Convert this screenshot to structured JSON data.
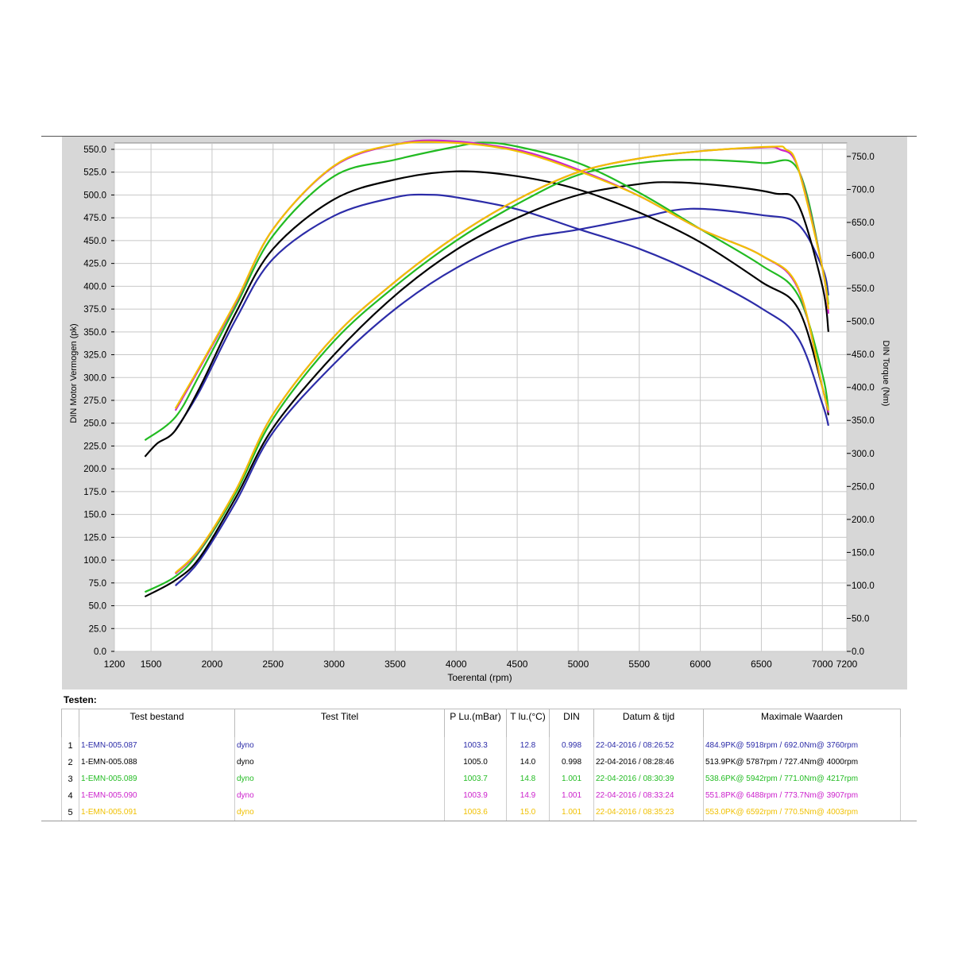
{
  "chart_data": {
    "type": "line",
    "xlabel": "Toerental (rpm)",
    "ylabel_left": "DIN Motor Vermogen (pk)",
    "ylabel_right": "DIN Torque (Nm)",
    "xlim": [
      1200,
      7200
    ],
    "ylim_left": [
      0,
      550
    ],
    "ylim_right": [
      0,
      780
    ],
    "x_ticks": [
      1200,
      1500,
      2000,
      2500,
      3000,
      3500,
      4000,
      4500,
      5000,
      5500,
      6000,
      6500,
      7000,
      7200
    ],
    "x_tick_labels": [
      "1200",
      "1500",
      "2000",
      "2500",
      "3000",
      "3500",
      "4000",
      "4500",
      "5000",
      "5500",
      "6000",
      "6500",
      "7000",
      "7200"
    ],
    "y_left_ticks": [
      "0.0",
      "25.0",
      "50.0",
      "75.0",
      "100.0",
      "125.0",
      "150.0",
      "175.0",
      "200.0",
      "225.0",
      "250.0",
      "275.0",
      "300.0",
      "325.0",
      "350.0",
      "375.0",
      "400.0",
      "425.0",
      "450.0",
      "475.0",
      "500.0",
      "525.0",
      "550.0"
    ],
    "y_right_ticks": [
      "0.0",
      "50.0",
      "100.0",
      "150.0",
      "200.0",
      "250.0",
      "300.0",
      "350.0",
      "400.0",
      "450.0",
      "500.0",
      "550.0",
      "600.0",
      "650.0",
      "700.0",
      "750.0"
    ],
    "grid": true,
    "series": [
      {
        "name": "1-EMN-005.087",
        "color": "#2c2ca8",
        "power": [
          [
            1700,
            72
          ],
          [
            1900,
            100
          ],
          [
            2200,
            165
          ],
          [
            2500,
            240
          ],
          [
            3000,
            315
          ],
          [
            3500,
            375
          ],
          [
            4000,
            420
          ],
          [
            4500,
            450
          ],
          [
            5000,
            462
          ],
          [
            5500,
            475
          ],
          [
            5918,
            484.9
          ],
          [
            6500,
            478
          ],
          [
            6800,
            468
          ],
          [
            7000,
            420
          ],
          [
            7050,
            390
          ]
        ],
        "torque": [
          [
            1700,
            335
          ],
          [
            1900,
            395
          ],
          [
            2200,
            505
          ],
          [
            2500,
            595
          ],
          [
            3000,
            660
          ],
          [
            3500,
            688
          ],
          [
            3760,
            692
          ],
          [
            4000,
            688
          ],
          [
            4500,
            670
          ],
          [
            5000,
            640
          ],
          [
            5500,
            610
          ],
          [
            6000,
            570
          ],
          [
            6500,
            520
          ],
          [
            6800,
            475
          ],
          [
            7000,
            375
          ],
          [
            7050,
            342
          ]
        ]
      },
      {
        "name": "1-EMN-005.088",
        "color": "#000000",
        "power": [
          [
            1450,
            60
          ],
          [
            1700,
            78
          ],
          [
            1900,
            103
          ],
          [
            2200,
            170
          ],
          [
            2500,
            245
          ],
          [
            3000,
            325
          ],
          [
            3500,
            390
          ],
          [
            4000,
            440
          ],
          [
            4500,
            475
          ],
          [
            5000,
            500
          ],
          [
            5500,
            512
          ],
          [
            5787,
            513.9
          ],
          [
            6200,
            510
          ],
          [
            6600,
            502
          ],
          [
            6800,
            490
          ],
          [
            7000,
            400
          ],
          [
            7050,
            350
          ]
        ],
        "torque": [
          [
            1450,
            295
          ],
          [
            1550,
            315
          ],
          [
            1700,
            335
          ],
          [
            1900,
            400
          ],
          [
            2200,
            515
          ],
          [
            2500,
            610
          ],
          [
            3000,
            685
          ],
          [
            3500,
            715
          ],
          [
            4000,
            727.4
          ],
          [
            4500,
            720
          ],
          [
            5000,
            700
          ],
          [
            5500,
            665
          ],
          [
            6000,
            620
          ],
          [
            6500,
            560
          ],
          [
            6800,
            520
          ],
          [
            7000,
            400
          ],
          [
            7050,
            358
          ]
        ]
      },
      {
        "name": "1-EMN-005.089",
        "color": "#22bb22",
        "power": [
          [
            1450,
            65
          ],
          [
            1700,
            82
          ],
          [
            1900,
            110
          ],
          [
            2200,
            175
          ],
          [
            2500,
            255
          ],
          [
            3000,
            340
          ],
          [
            3500,
            400
          ],
          [
            4000,
            450
          ],
          [
            4500,
            490
          ],
          [
            5000,
            522
          ],
          [
            5500,
            535
          ],
          [
            5942,
            538.6
          ],
          [
            6500,
            535
          ],
          [
            6800,
            528
          ],
          [
            7000,
            420
          ],
          [
            7050,
            380
          ]
        ],
        "torque": [
          [
            1450,
            320
          ],
          [
            1700,
            355
          ],
          [
            1900,
            420
          ],
          [
            2200,
            525
          ],
          [
            2500,
            630
          ],
          [
            3000,
            720
          ],
          [
            3500,
            745
          ],
          [
            4000,
            765
          ],
          [
            4217,
            771
          ],
          [
            4500,
            765
          ],
          [
            5000,
            740
          ],
          [
            5500,
            695
          ],
          [
            6000,
            640
          ],
          [
            6500,
            585
          ],
          [
            6800,
            540
          ],
          [
            7000,
            420
          ],
          [
            7050,
            365
          ]
        ]
      },
      {
        "name": "1-EMN-005.090",
        "color": "#cc22cc",
        "power": [
          [
            1700,
            85
          ],
          [
            1900,
            112
          ],
          [
            2200,
            178
          ],
          [
            2500,
            260
          ],
          [
            3000,
            345
          ],
          [
            3500,
            405
          ],
          [
            4000,
            455
          ],
          [
            4500,
            495
          ],
          [
            5000,
            525
          ],
          [
            5500,
            540
          ],
          [
            6000,
            548
          ],
          [
            6488,
            551.8
          ],
          [
            6650,
            550
          ],
          [
            6800,
            530
          ],
          [
            7000,
            420
          ],
          [
            7050,
            370
          ]
        ],
        "torque": [
          [
            1700,
            365
          ],
          [
            1900,
            430
          ],
          [
            2200,
            530
          ],
          [
            2500,
            640
          ],
          [
            3000,
            735
          ],
          [
            3500,
            768
          ],
          [
            3907,
            773.7
          ],
          [
            4500,
            760
          ],
          [
            5000,
            730
          ],
          [
            5500,
            690
          ],
          [
            6000,
            640
          ],
          [
            6500,
            600
          ],
          [
            6800,
            550
          ],
          [
            7000,
            400
          ],
          [
            7050,
            362
          ]
        ]
      },
      {
        "name": "1-EMN-005.091",
        "color": "#f0c000",
        "power": [
          [
            1700,
            86
          ],
          [
            1900,
            113
          ],
          [
            2200,
            178
          ],
          [
            2500,
            260
          ],
          [
            3000,
            345
          ],
          [
            3500,
            405
          ],
          [
            4000,
            455
          ],
          [
            4500,
            495
          ],
          [
            5000,
            525
          ],
          [
            5500,
            540
          ],
          [
            6000,
            548
          ],
          [
            6592,
            553.0
          ],
          [
            6700,
            550
          ],
          [
            6800,
            530
          ],
          [
            7000,
            420
          ],
          [
            7050,
            375
          ]
        ],
        "torque": [
          [
            1700,
            368
          ],
          [
            1900,
            432
          ],
          [
            2200,
            532
          ],
          [
            2500,
            640
          ],
          [
            3000,
            736
          ],
          [
            3500,
            768
          ],
          [
            4003,
            770.5
          ],
          [
            4500,
            758
          ],
          [
            5000,
            728
          ],
          [
            5500,
            690
          ],
          [
            6000,
            640
          ],
          [
            6500,
            600
          ],
          [
            6800,
            552
          ],
          [
            7000,
            400
          ],
          [
            7050,
            365
          ]
        ]
      }
    ]
  },
  "tests": {
    "label": "Testen:",
    "headers": [
      "",
      "Test bestand",
      "Test Titel",
      "P Lu.(mBar)",
      "T lu.(°C)",
      "DIN",
      "Datum & tijd",
      "Maximale Waarden"
    ],
    "rows": [
      {
        "num": "1",
        "file": "1-EMN-005.087",
        "title": "dyno",
        "p": "1003.3",
        "t": "12.8",
        "din": "0.998",
        "date": "22-04-2016 / 08:26:52",
        "max": "484.9PK@ 5918rpm / 692.0Nm@ 3760rpm",
        "color": "#2c2ca8"
      },
      {
        "num": "2",
        "file": "1-EMN-005.088",
        "title": "dyno",
        "p": "1005.0",
        "t": "14.0",
        "din": "0.998",
        "date": "22-04-2016 / 08:28:46",
        "max": "513.9PK@ 5787rpm / 727.4Nm@ 4000rpm",
        "color": "#000000"
      },
      {
        "num": "3",
        "file": "1-EMN-005.089",
        "title": "dyno",
        "p": "1003.7",
        "t": "14.8",
        "din": "1.001",
        "date": "22-04-2016 / 08:30:39",
        "max": "538.6PK@ 5942rpm / 771.0Nm@ 4217rpm",
        "color": "#22bb22"
      },
      {
        "num": "4",
        "file": "1-EMN-005.090",
        "title": "dyno",
        "p": "1003.9",
        "t": "14.9",
        "din": "1.001",
        "date": "22-04-2016 / 08:33:24",
        "max": "551.8PK@ 6488rpm / 773.7Nm@ 3907rpm",
        "color": "#cc22cc"
      },
      {
        "num": "5",
        "file": "1-EMN-005.091",
        "title": "dyno",
        "p": "1003.6",
        "t": "15.0",
        "din": "1.001",
        "date": "22-04-2016 / 08:35:23",
        "max": "553.0PK@ 6592rpm / 770.5Nm@ 4003rpm",
        "color": "#f0c000"
      }
    ]
  }
}
